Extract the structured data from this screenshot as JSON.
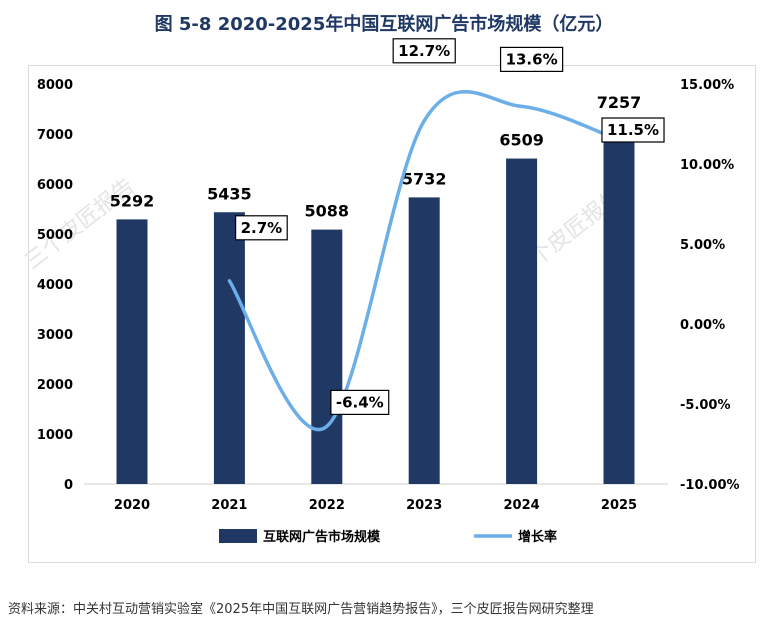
{
  "title": "图  5-8 2020-2025年中国互联网广告市场规模（亿元）",
  "source": "资料来源：中关村互动营销实验室《2025年中国互联网广告营销趋势报告》，三个皮匠报告网研究整理",
  "watermark": "三个皮匠报告",
  "colors": {
    "bar": "#1f3864",
    "line": "#6caee8",
    "title": "#1f3864"
  },
  "chart_data": {
    "type": "bar",
    "title": "2020-2025年中国互联网广告市场规模（亿元）",
    "categories": [
      "2020",
      "2021",
      "2022",
      "2023",
      "2024",
      "2025"
    ],
    "series": [
      {
        "name": "互联网广告市场规模",
        "type": "bar",
        "axis": "left",
        "values": [
          5292,
          5435,
          5088,
          5732,
          6509,
          7257
        ],
        "labels": [
          "5292",
          "5435",
          "5088",
          "5732",
          "6509",
          "7257"
        ]
      },
      {
        "name": "增长率",
        "type": "line",
        "axis": "right",
        "x": [
          "2021",
          "2022",
          "2023",
          "2024",
          "2025"
        ],
        "values": [
          2.7,
          -6.4,
          12.7,
          13.6,
          11.5
        ],
        "labels": [
          "2.7%",
          "-6.4%",
          "12.7%",
          "13.6%",
          "11.5%"
        ]
      }
    ],
    "y_left": {
      "min": 0,
      "max": 8000,
      "ticks": [
        "0",
        "1000",
        "2000",
        "3000",
        "4000",
        "5000",
        "6000",
        "7000",
        "8000"
      ]
    },
    "y_right": {
      "min": -10,
      "max": 15,
      "ticks": [
        "-10.00%",
        "-5.00%",
        "0.00%",
        "5.00%",
        "10.00%",
        "15.00%"
      ]
    },
    "legend": [
      "互联网广告市场规模",
      "增长率"
    ],
    "grid": false
  }
}
